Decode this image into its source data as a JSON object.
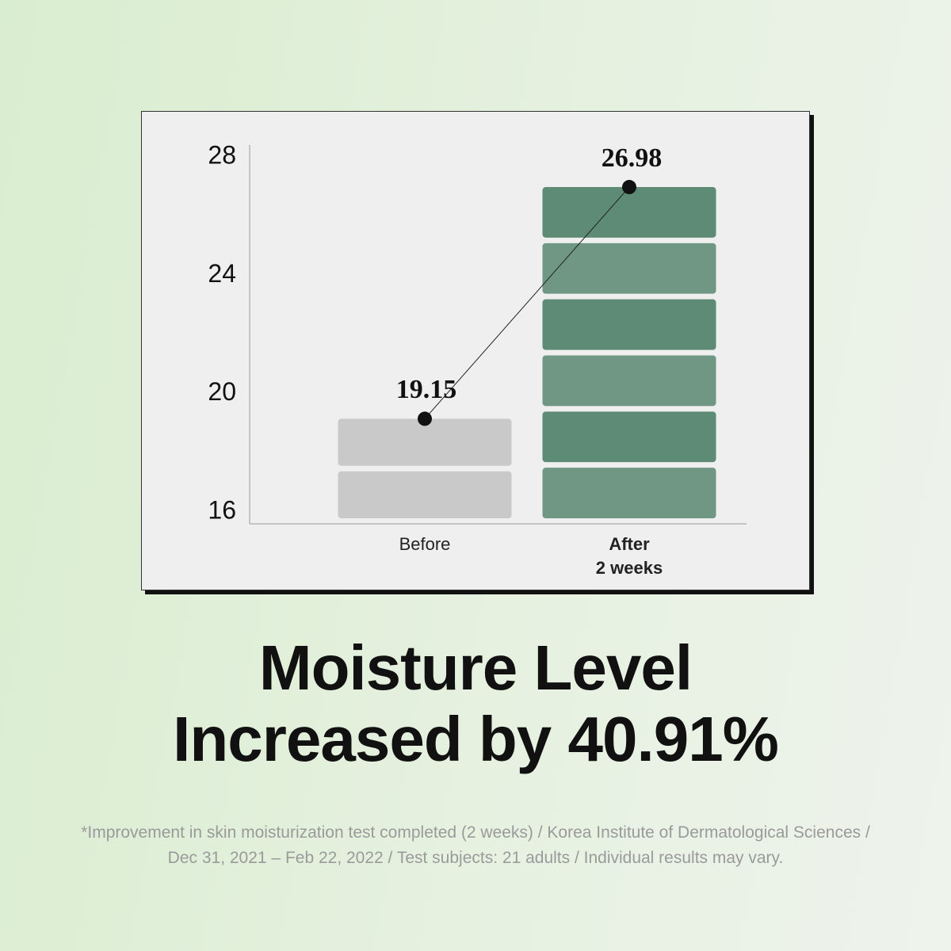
{
  "chart_data": {
    "type": "bar",
    "categories": [
      "Before",
      "After\n2 weeks"
    ],
    "values": [
      19.15,
      26.98
    ],
    "colors": [
      "#c9c9c9",
      "#5d8b75"
    ],
    "ylim": [
      15.6,
      28.4
    ],
    "yticks": [
      16,
      20,
      24,
      28
    ],
    "connector": true
  },
  "headline": [
    "Moisture Level",
    "Increased by 40.91%"
  ],
  "footnote": [
    "*Improvement in skin moisturization test completed (2 weeks) / Korea Institute of Dermatological Sciences /",
    "Dec 31, 2021 – Feb 22, 2022 / Test subjects: 21 adults / Individual results may vary."
  ]
}
